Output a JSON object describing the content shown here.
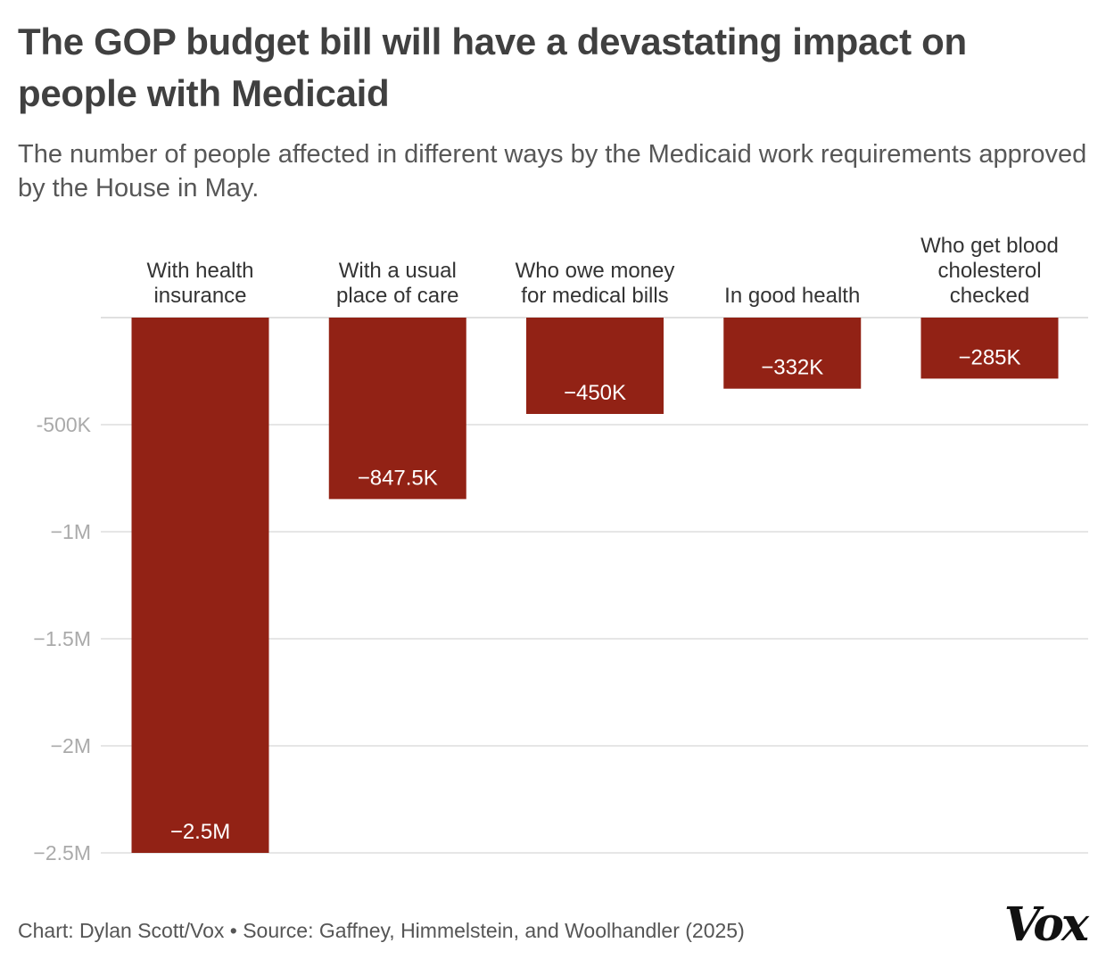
{
  "header": {
    "title": "The GOP budget bill will have a devastating impact on people with Medicaid",
    "subtitle": "The number of people affected in different ways by the Medicaid work requirements approved by the House in May."
  },
  "chart_data": {
    "type": "bar",
    "categories": [
      [
        "With health",
        "insurance"
      ],
      [
        "With a usual",
        "place of care"
      ],
      [
        "Who owe money",
        "for medical bills"
      ],
      [
        "In good health"
      ],
      [
        "Who get blood",
        "cholesterol",
        "checked"
      ]
    ],
    "values": [
      -2500000,
      -847500,
      -450000,
      -332000,
      -285000
    ],
    "value_labels": [
      "−2.5M",
      "−847.5K",
      "−450K",
      "−332K",
      "−285K"
    ],
    "ylim": [
      -2500000,
      0
    ],
    "yticks": [
      {
        "value": -500000,
        "label": "-500K"
      },
      {
        "value": -1000000,
        "label": "−1M"
      },
      {
        "value": -1500000,
        "label": "−1.5M"
      },
      {
        "value": -2000000,
        "label": "−2M"
      },
      {
        "value": -2500000,
        "label": "−2.5M"
      }
    ],
    "grid": true,
    "bar_color": "#922215"
  },
  "footer": {
    "credit": "Chart: Dylan Scott/Vox • Source: Gaffney, Himmelstein, and Woolhandler (2025)",
    "logo": "Vox"
  }
}
